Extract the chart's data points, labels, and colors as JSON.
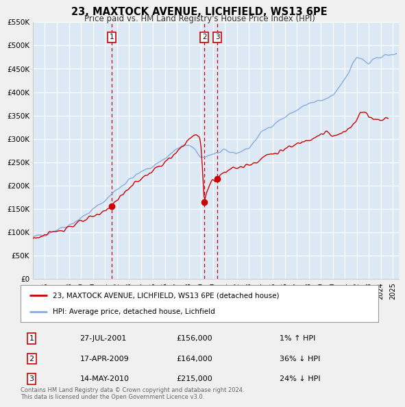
{
  "title": "23, MAXTOCK AVENUE, LICHFIELD, WS13 6PE",
  "subtitle": "Price paid vs. HM Land Registry's House Price Index (HPI)",
  "background_color": "#dce9f5",
  "fig_bg_color": "#f0f0f0",
  "red_color": "#cc0000",
  "blue_color": "#88aadd",
  "ylim": [
    0,
    550000
  ],
  "yticks": [
    0,
    50000,
    100000,
    150000,
    200000,
    250000,
    300000,
    350000,
    400000,
    450000,
    500000,
    550000
  ],
  "ytick_labels": [
    "£0",
    "£50K",
    "£100K",
    "£150K",
    "£200K",
    "£250K",
    "£300K",
    "£350K",
    "£400K",
    "£450K",
    "£500K",
    "£550K"
  ],
  "xlim_start": 1995.0,
  "xlim_end": 2025.5,
  "xticks": [
    1995,
    1996,
    1997,
    1998,
    1999,
    2000,
    2001,
    2002,
    2003,
    2004,
    2005,
    2006,
    2007,
    2008,
    2009,
    2010,
    2011,
    2012,
    2013,
    2014,
    2015,
    2016,
    2017,
    2018,
    2019,
    2020,
    2021,
    2022,
    2023,
    2024,
    2025
  ],
  "legend_address": "23, MAXTOCK AVENUE, LICHFIELD, WS13 6PE (detached house)",
  "legend_hpi": "HPI: Average price, detached house, Lichfield",
  "sale1_label": "1",
  "sale1_date": "27-JUL-2001",
  "sale1_price": "£156,000",
  "sale1_hpi": "1% ↑ HPI",
  "sale1_year": 2001.57,
  "sale1_value": 156000,
  "sale2_label": "2",
  "sale2_date": "17-APR-2009",
  "sale2_price": "£164,000",
  "sale2_hpi": "36% ↓ HPI",
  "sale2_year": 2009.29,
  "sale2_value": 164000,
  "sale3_label": "3",
  "sale3_date": "14-MAY-2010",
  "sale3_price": "£215,000",
  "sale3_hpi": "24% ↓ HPI",
  "sale3_year": 2010.37,
  "sale3_value": 215000,
  "footer": "Contains HM Land Registry data © Crown copyright and database right 2024.\nThis data is licensed under the Open Government Licence v3.0."
}
